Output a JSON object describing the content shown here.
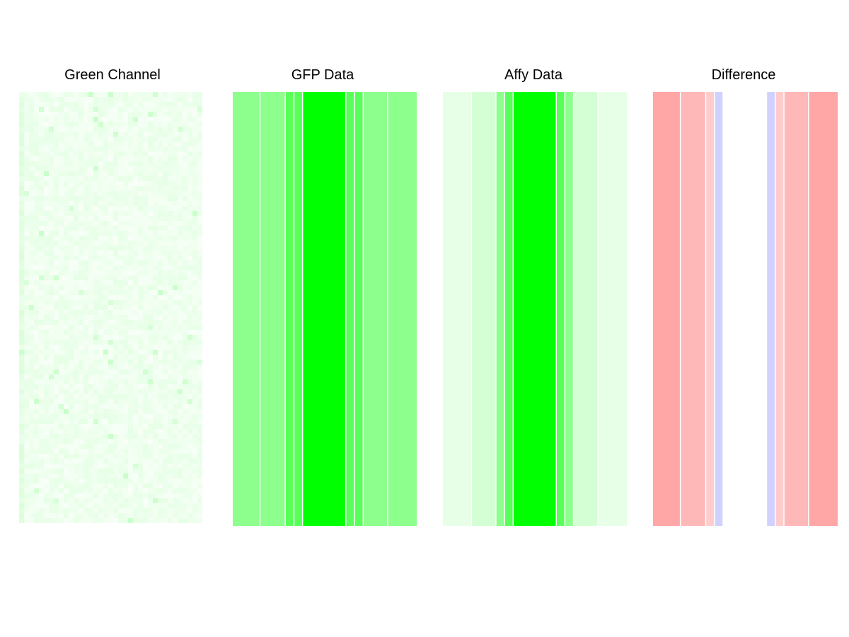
{
  "chart_data": [
    {
      "type": "heatmap",
      "title": "Green Channel",
      "axes": "none",
      "grid": false,
      "legend": "none",
      "description": "grayscale-green micro-array scan image (noisy texture)",
      "base_color": "#00ff00",
      "values": []
    },
    {
      "type": "heatmap",
      "title": "GFP Data",
      "axes": "none",
      "grid": false,
      "legend": "none",
      "base_color": "#00ff00",
      "bands": [
        {
          "level": 0.45,
          "weight": 38
        },
        {
          "level": 0.45,
          "weight": 35
        },
        {
          "level": 0.65,
          "weight": 12
        },
        {
          "level": 0.65,
          "weight": 12
        },
        {
          "level": 1.0,
          "weight": 60
        },
        {
          "level": 0.65,
          "weight": 12
        },
        {
          "level": 0.65,
          "weight": 12
        },
        {
          "level": 0.45,
          "weight": 34
        },
        {
          "level": 0.45,
          "weight": 40
        }
      ]
    },
    {
      "type": "heatmap",
      "title": "Affy Data",
      "axes": "none",
      "grid": false,
      "legend": "none",
      "base_color": "#00ff00",
      "bands": [
        {
          "level": 0.1,
          "weight": 40
        },
        {
          "level": 0.17,
          "weight": 34
        },
        {
          "level": 0.45,
          "weight": 12
        },
        {
          "level": 0.65,
          "weight": 12
        },
        {
          "level": 1.0,
          "weight": 60
        },
        {
          "level": 0.65,
          "weight": 12
        },
        {
          "level": 0.45,
          "weight": 12
        },
        {
          "level": 0.17,
          "weight": 34
        },
        {
          "level": 0.1,
          "weight": 40
        }
      ]
    },
    {
      "type": "heatmap",
      "title": "Difference",
      "axes": "none",
      "grid": false,
      "legend": "none",
      "positive_color": "#ff0000",
      "negative_color": "#0000ff",
      "bands": [
        {
          "level": 0.35,
          "weight": 38
        },
        {
          "level": 0.28,
          "weight": 35
        },
        {
          "level": 0.2,
          "weight": 12
        },
        {
          "level": -0.18,
          "weight": 12
        },
        {
          "level": 0.0,
          "weight": 60
        },
        {
          "level": -0.18,
          "weight": 12
        },
        {
          "level": 0.2,
          "weight": 12
        },
        {
          "level": 0.28,
          "weight": 34
        },
        {
          "level": 0.35,
          "weight": 40
        }
      ]
    }
  ]
}
